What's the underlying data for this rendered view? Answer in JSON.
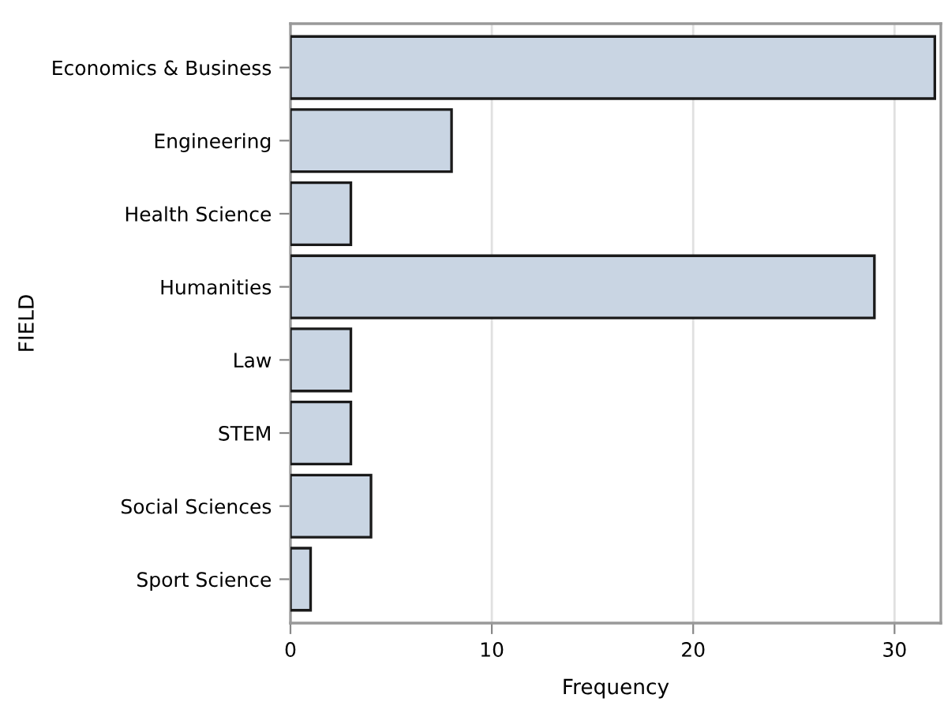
{
  "chart_data": {
    "type": "bar",
    "orientation": "horizontal",
    "xlabel": "Frequency",
    "ylabel": "FIELD",
    "categories": [
      "Economics & Business",
      "Engineering",
      "Health Science",
      "Humanities",
      "Law",
      "STEM",
      "Social Sciences",
      "Sport Science"
    ],
    "values": [
      32,
      8,
      3,
      29,
      3,
      3,
      4,
      1
    ],
    "color": "#c9d5e3",
    "xlim": [
      0,
      32.3
    ],
    "xticks": [
      0,
      10,
      20,
      30
    ],
    "grid": "x"
  }
}
